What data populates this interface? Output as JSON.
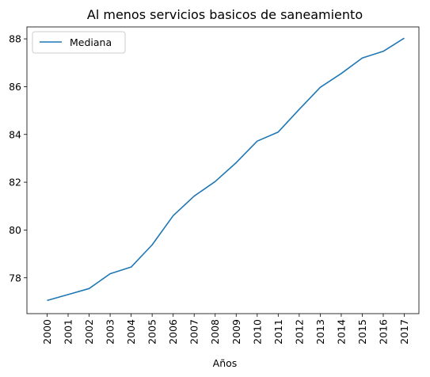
{
  "chart_data": {
    "type": "line",
    "title": "Al menos servicios basicos de saneamiento",
    "xlabel": "Años",
    "ylabel": "",
    "categories": [
      "2000",
      "2001",
      "2002",
      "2003",
      "2004",
      "2005",
      "2006",
      "2007",
      "2008",
      "2009",
      "2010",
      "2011",
      "2012",
      "2013",
      "2014",
      "2015",
      "2016",
      "2017"
    ],
    "series": [
      {
        "name": "Mediana",
        "color": "#1f77b4",
        "values": [
          77.05,
          77.3,
          77.55,
          78.17,
          78.45,
          79.38,
          80.6,
          81.42,
          82.03,
          82.82,
          83.72,
          84.1,
          85.05,
          85.97,
          86.55,
          87.2,
          87.48,
          88.03
        ]
      }
    ],
    "yticks": [
      78,
      80,
      82,
      84,
      86,
      88
    ],
    "ylim": [
      76.5,
      88.5
    ],
    "legend": "upper-left",
    "grid": false
  }
}
